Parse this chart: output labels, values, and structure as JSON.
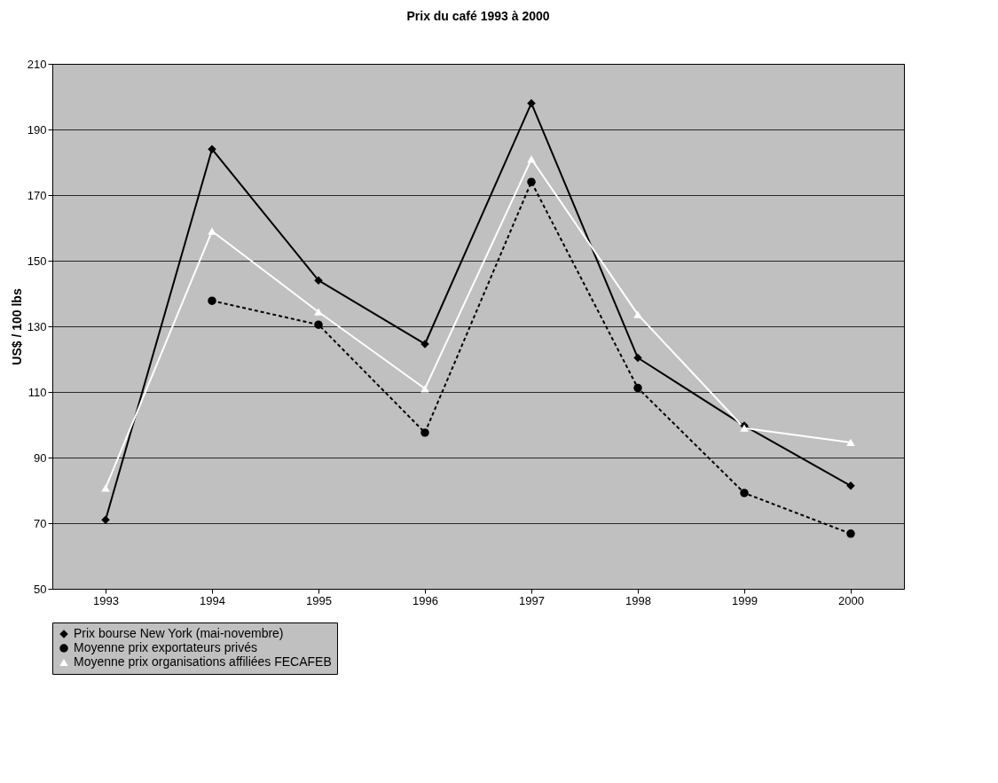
{
  "chart_data": {
    "type": "line",
    "title": "Prix du café 1993 à 2000",
    "ylabel": "US$ / 100 lbs",
    "categories": [
      "1993",
      "1994",
      "1995",
      "1996",
      "1997",
      "1998",
      "1999",
      "2000"
    ],
    "series": [
      {
        "name": "Prix bourse New York (mai-novembre)",
        "color": "#000000",
        "marker": "diamond",
        "line_style": "solid",
        "values": [
          71,
          184,
          144,
          124.6,
          198,
          120.4,
          99.7,
          81.4
        ]
      },
      {
        "name": "Moyenne prix exportateurs privés",
        "color": "#000000",
        "marker": "circle",
        "line_style": "dashed",
        "values": [
          null,
          137.8,
          130.5,
          97.6,
          174,
          111.2,
          79.2,
          66.8
        ]
      },
      {
        "name": "Moyenne prix organisations affiliées FECAFEB",
        "color": "#ffffff",
        "marker": "triangle",
        "line_style": "solid",
        "values": [
          80.7,
          159,
          134.4,
          111,
          181,
          133.6,
          99,
          94.6
        ]
      }
    ],
    "ylim": [
      50,
      210
    ],
    "yticks": [
      50,
      70,
      90,
      110,
      130,
      150,
      170,
      190,
      210
    ],
    "grid": "y",
    "legend": "bottom"
  }
}
